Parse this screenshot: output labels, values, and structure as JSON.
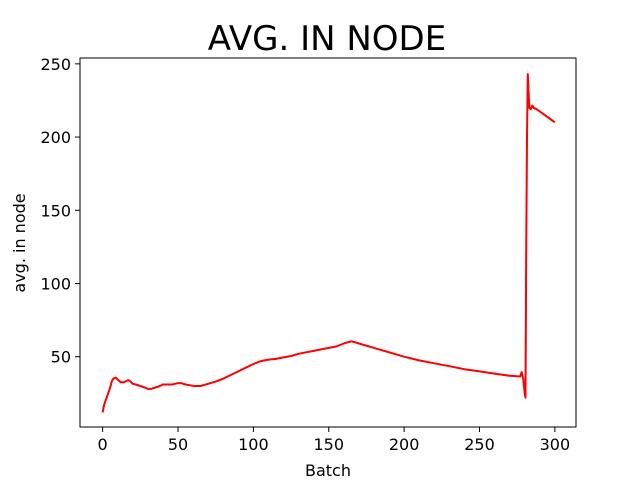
{
  "chart_data": {
    "type": "line",
    "title": "AVG. IN NODE",
    "xlabel": "Batch",
    "ylabel": "avg. in node",
    "xlim": [
      -15,
      314
    ],
    "ylim": [
      2,
      254
    ],
    "xticks": [
      0,
      50,
      100,
      150,
      200,
      250,
      300
    ],
    "yticks": [
      50,
      100,
      150,
      200,
      250
    ],
    "grid": false,
    "series": [
      {
        "color": "#ff0000",
        "points": [
          [
            0,
            12
          ],
          [
            1,
            17
          ],
          [
            2,
            20
          ],
          [
            3,
            23
          ],
          [
            4,
            26
          ],
          [
            5,
            29
          ],
          [
            6,
            33
          ],
          [
            7,
            35
          ],
          [
            8,
            35.5
          ],
          [
            9,
            35.5
          ],
          [
            10,
            34.5
          ],
          [
            11,
            33.5
          ],
          [
            12,
            32.5
          ],
          [
            13,
            32.5
          ],
          [
            14,
            32.5
          ],
          [
            15,
            33
          ],
          [
            16,
            33.5
          ],
          [
            17,
            34
          ],
          [
            18,
            33.5
          ],
          [
            19,
            32.5
          ],
          [
            20,
            31.5
          ],
          [
            22,
            31
          ],
          [
            25,
            30
          ],
          [
            28,
            29
          ],
          [
            30,
            28
          ],
          [
            32,
            28
          ],
          [
            35,
            29
          ],
          [
            38,
            30
          ],
          [
            40,
            31
          ],
          [
            43,
            31
          ],
          [
            46,
            31
          ],
          [
            48,
            31.5
          ],
          [
            50,
            32
          ],
          [
            52,
            32
          ],
          [
            55,
            31
          ],
          [
            58,
            30.5
          ],
          [
            61,
            30
          ],
          [
            65,
            30
          ],
          [
            70,
            31.5
          ],
          [
            75,
            33
          ],
          [
            80,
            35
          ],
          [
            85,
            37.5
          ],
          [
            90,
            40
          ],
          [
            95,
            42.5
          ],
          [
            100,
            45
          ],
          [
            105,
            47
          ],
          [
            110,
            48
          ],
          [
            115,
            48.5
          ],
          [
            120,
            49.5
          ],
          [
            125,
            50.5
          ],
          [
            130,
            52
          ],
          [
            135,
            53
          ],
          [
            140,
            54
          ],
          [
            145,
            55
          ],
          [
            150,
            56
          ],
          [
            155,
            57
          ],
          [
            160,
            59
          ],
          [
            163,
            60
          ],
          [
            165,
            60.5
          ],
          [
            167,
            60
          ],
          [
            170,
            59
          ],
          [
            180,
            56
          ],
          [
            190,
            53
          ],
          [
            200,
            50
          ],
          [
            210,
            47.5
          ],
          [
            220,
            45.5
          ],
          [
            230,
            43.5
          ],
          [
            240,
            41.5
          ],
          [
            250,
            40
          ],
          [
            260,
            38.5
          ],
          [
            270,
            37
          ],
          [
            277,
            36.5
          ],
          [
            278,
            39.5
          ],
          [
            279,
            35
          ],
          [
            280,
            25
          ],
          [
            280.5,
            22
          ],
          [
            281,
            120
          ],
          [
            281.5,
            200
          ],
          [
            282,
            243
          ],
          [
            283,
            220
          ],
          [
            284,
            219
          ],
          [
            285,
            221.5
          ],
          [
            286,
            220
          ],
          [
            288,
            219
          ],
          [
            290,
            217.5
          ],
          [
            292,
            216
          ],
          [
            294,
            214.5
          ],
          [
            296,
            213
          ],
          [
            298,
            211.5
          ],
          [
            300,
            210
          ]
        ]
      }
    ]
  }
}
